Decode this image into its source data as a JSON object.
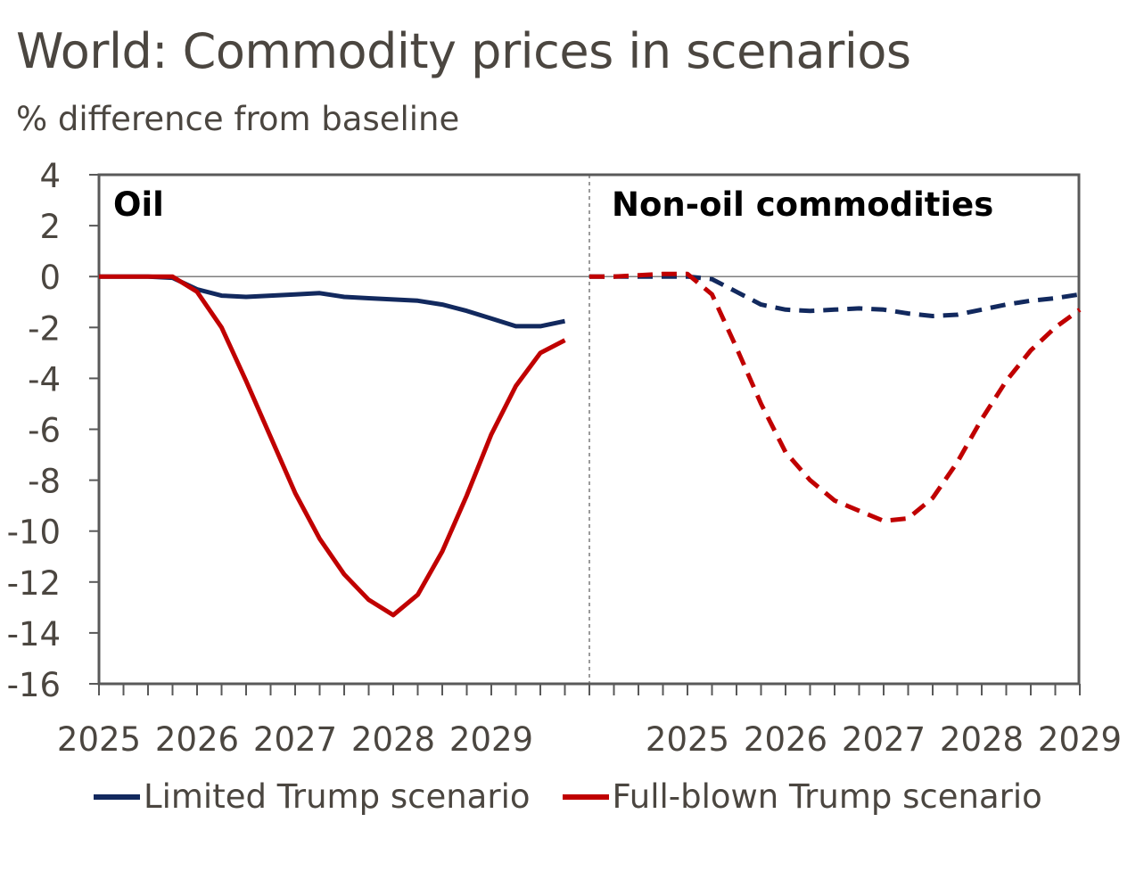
{
  "title": "World: Commodity prices in scenarios",
  "subtitle": "% difference from baseline",
  "colors": {
    "limited": "#12295e",
    "full": "#c00000",
    "text": "#4b4640",
    "axis": "#595959"
  },
  "chart_data": [
    {
      "type": "line",
      "panel_label": "Oil",
      "x_tick_labels": [
        "2025",
        "2026",
        "2027",
        "2028",
        "2029"
      ],
      "y_ticks": [
        "4",
        "2",
        "0",
        "-2",
        "-4",
        "-6",
        "-8",
        "-10",
        "-12",
        "-14",
        "-16"
      ],
      "ylim": [
        -16,
        4
      ],
      "line_style": "solid",
      "x": [
        2025.0,
        2025.25,
        2025.5,
        2025.75,
        2026.0,
        2026.25,
        2026.5,
        2026.75,
        2027.0,
        2027.25,
        2027.5,
        2027.75,
        2028.0,
        2028.25,
        2028.5,
        2028.75,
        2029.0,
        2029.25,
        2029.5,
        2029.75
      ],
      "series": [
        {
          "name": "Limited Trump scenario",
          "values": [
            0,
            0,
            0,
            -0.05,
            -0.5,
            -0.75,
            -0.8,
            -0.75,
            -0.7,
            -0.65,
            -0.8,
            -0.85,
            -0.9,
            -0.95,
            -1.1,
            -1.35,
            -1.65,
            -1.95,
            -1.95,
            -1.75
          ]
        },
        {
          "name": "Full-blown Trump scenario",
          "values": [
            0,
            0,
            0,
            0,
            -0.6,
            -2.0,
            -4.1,
            -6.3,
            -8.5,
            -10.3,
            -11.7,
            -12.7,
            -13.3,
            -12.5,
            -10.8,
            -8.6,
            -6.2,
            -4.3,
            -3.0,
            -2.5
          ]
        }
      ]
    },
    {
      "type": "line",
      "panel_label": "Non-oil commodities",
      "x_tick_labels": [
        "2025",
        "2026",
        "2027",
        "2028",
        "2029"
      ],
      "ylim": [
        -16,
        4
      ],
      "line_style": "dashed",
      "x": [
        2024.0,
        2024.25,
        2024.5,
        2024.75,
        2025.0,
        2025.25,
        2025.5,
        2025.75,
        2026.0,
        2026.25,
        2026.5,
        2026.75,
        2027.0,
        2027.25,
        2027.5,
        2027.75,
        2028.0,
        2028.25,
        2028.5,
        2028.75,
        2029.0
      ],
      "series": [
        {
          "name": "Limited Trump scenario",
          "values": [
            0,
            0,
            0,
            0,
            0,
            -0.1,
            -0.6,
            -1.1,
            -1.3,
            -1.35,
            -1.3,
            -1.25,
            -1.3,
            -1.45,
            -1.55,
            -1.5,
            -1.3,
            -1.1,
            -0.95,
            -0.85,
            -0.7
          ]
        },
        {
          "name": "Full-blown Trump scenario",
          "values": [
            0,
            0,
            0.05,
            0.1,
            0.1,
            -0.7,
            -2.8,
            -5.0,
            -6.9,
            -8.0,
            -8.8,
            -9.2,
            -9.6,
            -9.5,
            -8.7,
            -7.3,
            -5.6,
            -4.1,
            -2.9,
            -2.0,
            -1.3
          ]
        }
      ]
    }
  ]
}
